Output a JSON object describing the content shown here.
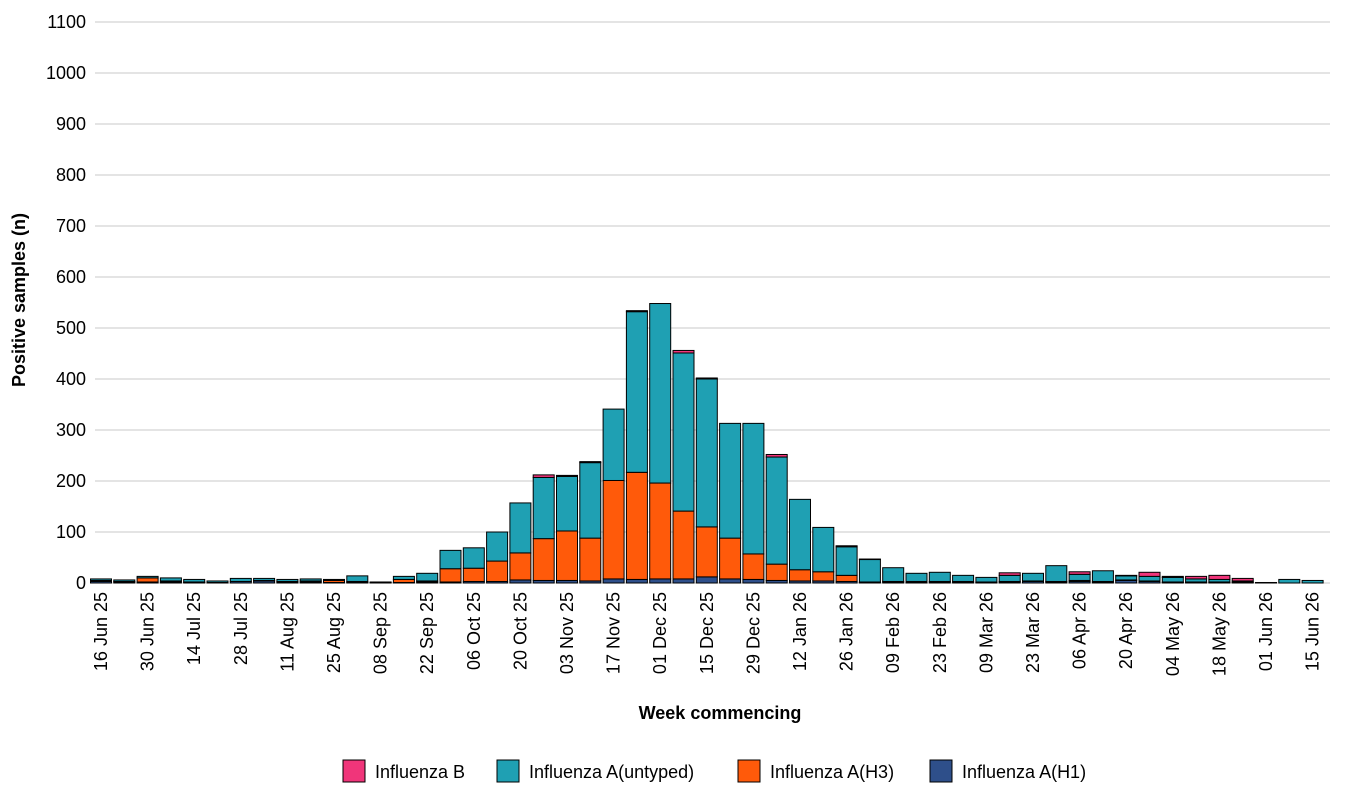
{
  "chart_data": {
    "type": "bar",
    "stacked": true,
    "xlabel": "Week commencing",
    "ylabel": "Positive samples (n)",
    "ylim": [
      0,
      1100
    ],
    "yticks": [
      0,
      100,
      200,
      300,
      400,
      500,
      600,
      700,
      800,
      900,
      1000,
      1100
    ],
    "grid": true,
    "legend_position": "bottom",
    "categories": [
      "16 Jun 25",
      "23 Jun 25",
      "30 Jun 25",
      "07 Jul 25",
      "14 Jul 25",
      "21 Jul 25",
      "28 Jul 25",
      "04 Aug 25",
      "11 Aug 25",
      "18 Aug 25",
      "25 Aug 25",
      "01 Sep 25",
      "08 Sep 25",
      "15 Sep 25",
      "22 Sep 25",
      "29 Sep 25",
      "06 Oct 25",
      "13 Oct 25",
      "20 Oct 25",
      "27 Oct 25",
      "03 Nov 25",
      "10 Nov 25",
      "17 Nov 25",
      "24 Nov 25",
      "01 Dec 25",
      "08 Dec 25",
      "15 Dec 25",
      "22 Dec 25",
      "29 Dec 25",
      "05 Jan 26",
      "12 Jan 26",
      "19 Jan 26",
      "26 Jan 26",
      "02 Feb 26",
      "09 Feb 26",
      "16 Feb 26",
      "23 Feb 26",
      "02 Mar 26",
      "09 Mar 26",
      "16 Mar 26",
      "23 Mar 26",
      "30 Mar 26",
      "06 Apr 26",
      "13 Apr 26",
      "20 Apr 26",
      "27 Apr 26",
      "04 May 26",
      "11 May 26",
      "18 May 26",
      "25 May 26",
      "01 Jun 26",
      "08 Jun 26",
      "15 Jun 26"
    ],
    "tick_labels": [
      "16 Jun 25",
      "30 Jun 25",
      "14 Jul 25",
      "28 Jul 25",
      "11 Aug 25",
      "25 Aug 25",
      "08 Sep 25",
      "22 Sep 25",
      "06 Oct 25",
      "20 Oct 25",
      "03 Nov 25",
      "17 Nov 25",
      "01 Dec 25",
      "15 Dec 25",
      "29 Dec 25",
      "12 Jan 26",
      "26 Jan 26",
      "09 Feb 26",
      "23 Feb 26",
      "09 Mar 26",
      "23 Mar 26",
      "06 Apr 26",
      "20 Apr 26",
      "04 May 26",
      "18 May 26",
      "01 Jun 26",
      "15 Jun 26"
    ],
    "series": [
      {
        "name": "Influenza A(H1)",
        "color": "#2e4f8a",
        "values": [
          3,
          2,
          2,
          2,
          1,
          1,
          3,
          4,
          2,
          2,
          1,
          1,
          0,
          1,
          2,
          2,
          3,
          3,
          6,
          5,
          5,
          4,
          8,
          7,
          8,
          8,
          12,
          8,
          7,
          5,
          4,
          4,
          3,
          1,
          2,
          2,
          2,
          2,
          1,
          2,
          3,
          2,
          3,
          2,
          5,
          3,
          1,
          1,
          1,
          1,
          0,
          0,
          0
        ]
      },
      {
        "name": "Influenza A(H3)",
        "color": "#ff5a0a",
        "values": [
          2,
          1,
          8,
          2,
          1,
          0,
          0,
          1,
          1,
          2,
          4,
          2,
          1,
          6,
          2,
          26,
          26,
          40,
          53,
          82,
          97,
          84,
          193,
          210,
          188,
          133,
          98,
          80,
          50,
          32,
          22,
          18,
          12,
          1,
          1,
          1,
          1,
          1,
          1,
          1,
          1,
          1,
          2,
          1,
          1,
          1,
          1,
          1,
          1,
          1,
          0,
          0,
          0
        ]
      },
      {
        "name": "Influenza A(untyped)",
        "color": "#1fa0b3",
        "values": [
          3,
          3,
          3,
          6,
          5,
          3,
          6,
          4,
          4,
          4,
          2,
          11,
          1,
          6,
          15,
          36,
          40,
          57,
          98,
          120,
          107,
          148,
          140,
          315,
          352,
          310,
          290,
          225,
          256,
          210,
          138,
          87,
          56,
          44,
          27,
          16,
          18,
          12,
          9,
          12,
          15,
          31,
          12,
          21,
          8,
          9,
          9,
          6,
          5,
          2,
          1,
          7,
          5
        ]
      },
      {
        "name": "Influenza B",
        "color": "#f0357a",
        "values": [
          0,
          0,
          0,
          0,
          0,
          0,
          0,
          0,
          0,
          0,
          0,
          0,
          0,
          0,
          0,
          0,
          0,
          0,
          0,
          5,
          2,
          2,
          0,
          2,
          0,
          5,
          2,
          0,
          0,
          5,
          0,
          0,
          2,
          1,
          0,
          0,
          0,
          0,
          0,
          5,
          0,
          0,
          5,
          0,
          1,
          8,
          2,
          5,
          8,
          5,
          0,
          0,
          0
        ]
      }
    ],
    "legend": [
      "Influenza B",
      "Influenza A(untyped)",
      "Influenza A(H3)",
      "Influenza A(H1)"
    ]
  }
}
